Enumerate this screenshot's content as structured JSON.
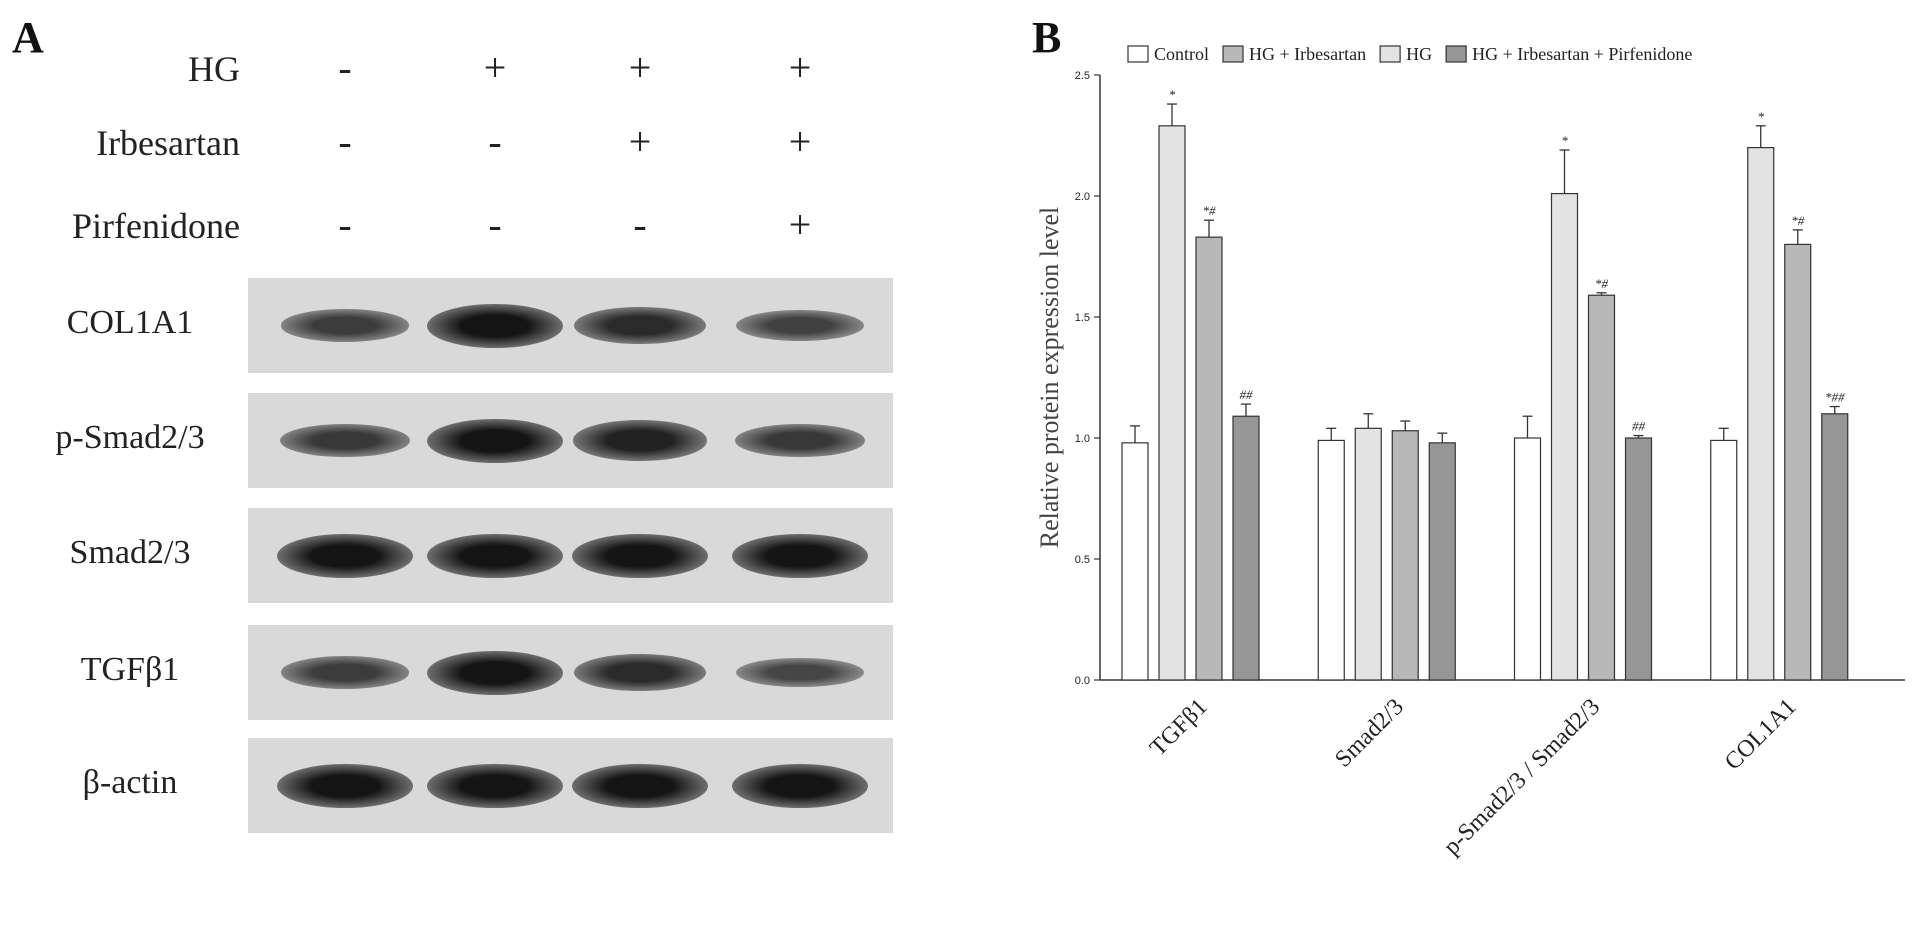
{
  "panel_a": {
    "letter": "A",
    "conditions": [
      {
        "label": "HG",
        "symbols": [
          "-",
          "+",
          "+",
          "+"
        ]
      },
      {
        "label": "Irbesartan",
        "symbols": [
          "-",
          "-",
          "+",
          "+"
        ]
      },
      {
        "label": "Pirfenidone",
        "symbols": [
          "-",
          "-",
          "-",
          "+"
        ]
      }
    ],
    "blots": [
      {
        "label": "COL1A1",
        "intensity": [
          0.55,
          1.0,
          0.75,
          0.5
        ]
      },
      {
        "label": "p-Smad2/3",
        "intensity": [
          0.6,
          1.0,
          0.85,
          0.6
        ]
      },
      {
        "label": "Smad2/3",
        "intensity": [
          1.0,
          1.0,
          1.0,
          1.0
        ]
      },
      {
        "label": "TGFβ1",
        "intensity": [
          0.55,
          1.0,
          0.75,
          0.45
        ]
      },
      {
        "label": "β-actin",
        "intensity": [
          1.0,
          1.0,
          1.0,
          1.0
        ]
      }
    ]
  },
  "panel_b": {
    "letter": "B"
  },
  "chart_data": {
    "type": "bar",
    "title": "",
    "xlabel": "",
    "ylabel": "Relative protein expression level",
    "ylim": [
      0,
      2.5
    ],
    "yticks": [
      "0.0",
      "0.5",
      "1.0",
      "1.5",
      "2.0",
      "2.5"
    ],
    "legend_position": "top",
    "categories": [
      "TGFβ1",
      "Smad2/3",
      "p-Smad2/3 / Smad2/3",
      "COL1A1"
    ],
    "series": [
      {
        "name": "Control",
        "color": "#ffffff",
        "values": [
          0.98,
          0.99,
          1.0,
          0.99
        ],
        "errors": [
          0.07,
          0.05,
          0.09,
          0.05
        ],
        "annotations": [
          "",
          "",
          "",
          ""
        ]
      },
      {
        "name": "HG",
        "color": "#e3e3e3",
        "values": [
          2.29,
          1.04,
          2.01,
          2.2
        ],
        "errors": [
          0.09,
          0.06,
          0.18,
          0.09
        ],
        "annotations": [
          "*",
          "",
          "*",
          "*"
        ]
      },
      {
        "name": "HG + Irbesartan",
        "color": "#b8b8b8",
        "values": [
          1.83,
          1.03,
          1.59,
          1.8
        ],
        "errors": [
          0.07,
          0.04,
          0.01,
          0.06
        ],
        "annotations": [
          "*#",
          "",
          "*#",
          "*#"
        ]
      },
      {
        "name": "HG + Irbesartan + Pirfenidone",
        "color": "#969696",
        "values": [
          1.09,
          0.98,
          1.0,
          1.1
        ],
        "errors": [
          0.05,
          0.04,
          0.01,
          0.03
        ],
        "annotations": [
          "##",
          "",
          "##",
          "*##"
        ]
      }
    ],
    "legend_order": [
      0,
      2,
      1,
      3
    ]
  }
}
